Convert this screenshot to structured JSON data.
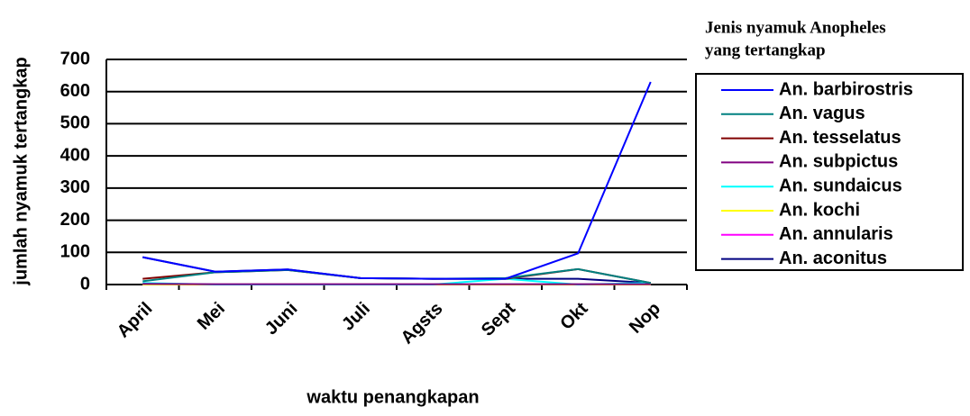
{
  "chart_data": {
    "type": "line",
    "x_label": "waktu penangkapan",
    "y_label": "jumlah nyamuk tertangkap",
    "legend_title": [
      "Jenis nyamuk Anopheles",
      "yang tertangkap"
    ],
    "categories": [
      "April",
      "Mei",
      "Juni",
      "Juli",
      "Agsts",
      "Sept",
      "Okt",
      "Nop"
    ],
    "ylim": [
      0,
      700
    ],
    "yticks": [
      0,
      100,
      200,
      300,
      400,
      500,
      600,
      700
    ],
    "grid": true,
    "legend": "right",
    "series": [
      {
        "name": "An. barbirostris",
        "color": "#0000ff",
        "values": [
          85,
          40,
          47,
          20,
          18,
          18,
          97,
          630
        ]
      },
      {
        "name": "An. vagus",
        "color": "#008080",
        "values": [
          10,
          38,
          45,
          20,
          18,
          20,
          48,
          5
        ]
      },
      {
        "name": "An. tesselatus",
        "color": "#800000",
        "values": [
          18,
          38,
          45,
          20,
          18,
          18,
          48,
          5
        ]
      },
      {
        "name": "An. subpictus",
        "color": "#800080",
        "values": [
          2,
          1,
          1,
          1,
          1,
          1,
          1,
          1
        ]
      },
      {
        "name": "An. sundaicus",
        "color": "#00ffff",
        "values": [
          5,
          0,
          0,
          0,
          0,
          18,
          0,
          5
        ]
      },
      {
        "name": "An. kochi",
        "color": "#ffff00",
        "values": [
          0,
          0,
          0,
          0,
          0,
          0,
          0,
          0
        ]
      },
      {
        "name": "An. annularis",
        "color": "#ff00ff",
        "values": [
          0,
          0,
          0,
          0,
          0,
          0,
          0,
          0
        ]
      },
      {
        "name": "An. aconitus",
        "color": "#000080",
        "values": [
          85,
          40,
          47,
          20,
          18,
          18,
          18,
          5
        ]
      }
    ]
  }
}
